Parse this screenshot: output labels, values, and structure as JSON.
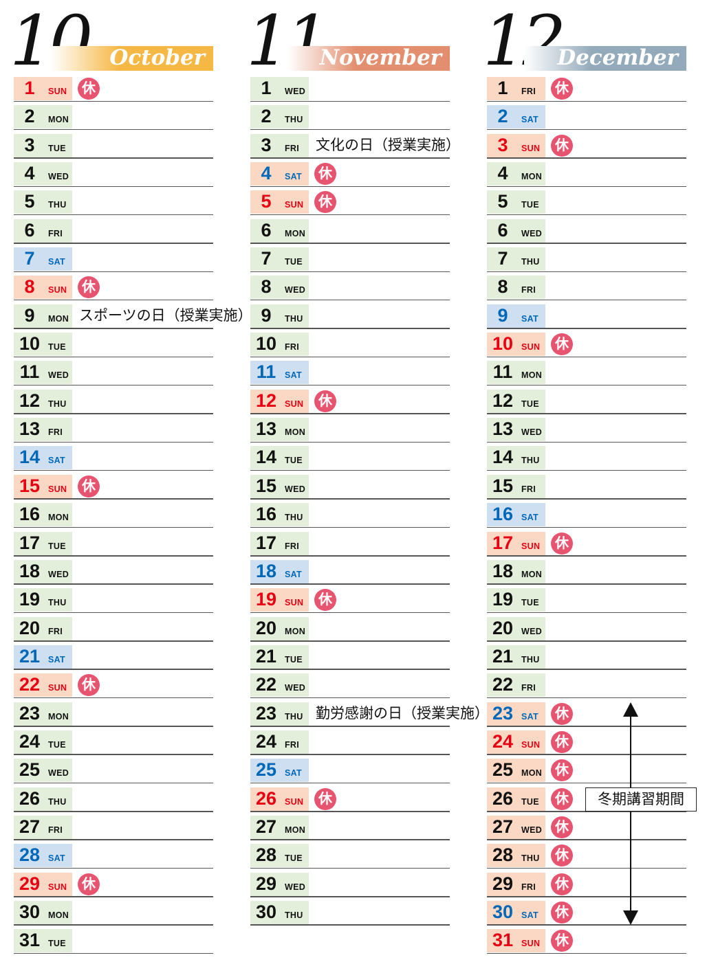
{
  "colors": {
    "weekday_bg": "#e3efdb",
    "saturday_bg": "#cfdff2",
    "holiday_bg": "#fbd8c4",
    "sunday_text": "#e60012",
    "saturday_text": "#0068b7",
    "weekday_text": "#121212",
    "badge_bg": "#e75470",
    "badge_text": "#ffffff",
    "row_line": "#555555",
    "october_banner": "#f6b845",
    "november_banner": "#e38f6f",
    "december_banner": "#93aaba",
    "banner_text": "#ffffff"
  },
  "badge": {
    "label": "休"
  },
  "annotation": {
    "label": "冬期講習期間",
    "from_date": 23,
    "to_date": 30
  },
  "months": [
    {
      "number": "10",
      "name": "October",
      "banner_color": "#f6b845",
      "days": [
        {
          "date": 1,
          "dow": "SUN",
          "hol": true
        },
        {
          "date": 2,
          "dow": "MON"
        },
        {
          "date": 3,
          "dow": "TUE"
        },
        {
          "date": 4,
          "dow": "WED"
        },
        {
          "date": 5,
          "dow": "THU"
        },
        {
          "date": 6,
          "dow": "FRI"
        },
        {
          "date": 7,
          "dow": "SAT"
        },
        {
          "date": 8,
          "dow": "SUN",
          "hol": true
        },
        {
          "date": 9,
          "dow": "MON",
          "note": "スポーツの日（授業実施）"
        },
        {
          "date": 10,
          "dow": "TUE"
        },
        {
          "date": 11,
          "dow": "WED"
        },
        {
          "date": 12,
          "dow": "THU"
        },
        {
          "date": 13,
          "dow": "FRI"
        },
        {
          "date": 14,
          "dow": "SAT"
        },
        {
          "date": 15,
          "dow": "SUN",
          "hol": true
        },
        {
          "date": 16,
          "dow": "MON"
        },
        {
          "date": 17,
          "dow": "TUE"
        },
        {
          "date": 18,
          "dow": "WED"
        },
        {
          "date": 19,
          "dow": "THU"
        },
        {
          "date": 20,
          "dow": "FRI"
        },
        {
          "date": 21,
          "dow": "SAT"
        },
        {
          "date": 22,
          "dow": "SUN",
          "hol": true
        },
        {
          "date": 23,
          "dow": "MON"
        },
        {
          "date": 24,
          "dow": "TUE"
        },
        {
          "date": 25,
          "dow": "WED"
        },
        {
          "date": 26,
          "dow": "THU"
        },
        {
          "date": 27,
          "dow": "FRI"
        },
        {
          "date": 28,
          "dow": "SAT"
        },
        {
          "date": 29,
          "dow": "SUN",
          "hol": true
        },
        {
          "date": 30,
          "dow": "MON"
        },
        {
          "date": 31,
          "dow": "TUE"
        }
      ]
    },
    {
      "number": "11",
      "name": "November",
      "banner_color": "#e38f6f",
      "days": [
        {
          "date": 1,
          "dow": "WED"
        },
        {
          "date": 2,
          "dow": "THU"
        },
        {
          "date": 3,
          "dow": "FRI",
          "note": "文化の日（授業実施）"
        },
        {
          "date": 4,
          "dow": "SAT",
          "hol": true
        },
        {
          "date": 5,
          "dow": "SUN",
          "hol": true
        },
        {
          "date": 6,
          "dow": "MON"
        },
        {
          "date": 7,
          "dow": "TUE"
        },
        {
          "date": 8,
          "dow": "WED"
        },
        {
          "date": 9,
          "dow": "THU"
        },
        {
          "date": 10,
          "dow": "FRI"
        },
        {
          "date": 11,
          "dow": "SAT"
        },
        {
          "date": 12,
          "dow": "SUN",
          "hol": true
        },
        {
          "date": 13,
          "dow": "MON"
        },
        {
          "date": 14,
          "dow": "TUE"
        },
        {
          "date": 15,
          "dow": "WED"
        },
        {
          "date": 16,
          "dow": "THU"
        },
        {
          "date": 17,
          "dow": "FRI"
        },
        {
          "date": 18,
          "dow": "SAT"
        },
        {
          "date": 19,
          "dow": "SUN",
          "hol": true
        },
        {
          "date": 20,
          "dow": "MON"
        },
        {
          "date": 21,
          "dow": "TUE"
        },
        {
          "date": 22,
          "dow": "WED"
        },
        {
          "date": 23,
          "dow": "THU",
          "note": "勤労感謝の日（授業実施）"
        },
        {
          "date": 24,
          "dow": "FRI"
        },
        {
          "date": 25,
          "dow": "SAT"
        },
        {
          "date": 26,
          "dow": "SUN",
          "hol": true
        },
        {
          "date": 27,
          "dow": "MON"
        },
        {
          "date": 28,
          "dow": "TUE"
        },
        {
          "date": 29,
          "dow": "WED"
        },
        {
          "date": 30,
          "dow": "THU"
        }
      ]
    },
    {
      "number": "12",
      "name": "December",
      "banner_color": "#93aaba",
      "days": [
        {
          "date": 1,
          "dow": "FRI",
          "hol": true
        },
        {
          "date": 2,
          "dow": "SAT"
        },
        {
          "date": 3,
          "dow": "SUN",
          "hol": true
        },
        {
          "date": 4,
          "dow": "MON"
        },
        {
          "date": 5,
          "dow": "TUE"
        },
        {
          "date": 6,
          "dow": "WED"
        },
        {
          "date": 7,
          "dow": "THU"
        },
        {
          "date": 8,
          "dow": "FRI"
        },
        {
          "date": 9,
          "dow": "SAT"
        },
        {
          "date": 10,
          "dow": "SUN",
          "hol": true
        },
        {
          "date": 11,
          "dow": "MON"
        },
        {
          "date": 12,
          "dow": "TUE"
        },
        {
          "date": 13,
          "dow": "WED"
        },
        {
          "date": 14,
          "dow": "THU"
        },
        {
          "date": 15,
          "dow": "FRI"
        },
        {
          "date": 16,
          "dow": "SAT"
        },
        {
          "date": 17,
          "dow": "SUN",
          "hol": true
        },
        {
          "date": 18,
          "dow": "MON"
        },
        {
          "date": 19,
          "dow": "TUE"
        },
        {
          "date": 20,
          "dow": "WED"
        },
        {
          "date": 21,
          "dow": "THU"
        },
        {
          "date": 22,
          "dow": "FRI"
        },
        {
          "date": 23,
          "dow": "SAT",
          "hol": true
        },
        {
          "date": 24,
          "dow": "SUN",
          "hol": true
        },
        {
          "date": 25,
          "dow": "MON",
          "hol": true
        },
        {
          "date": 26,
          "dow": "TUE",
          "hol": true
        },
        {
          "date": 27,
          "dow": "WED",
          "hol": true
        },
        {
          "date": 28,
          "dow": "THU",
          "hol": true
        },
        {
          "date": 29,
          "dow": "FRI",
          "hol": true
        },
        {
          "date": 30,
          "dow": "SAT",
          "hol": true
        },
        {
          "date": 31,
          "dow": "SUN",
          "hol": true
        }
      ]
    }
  ]
}
